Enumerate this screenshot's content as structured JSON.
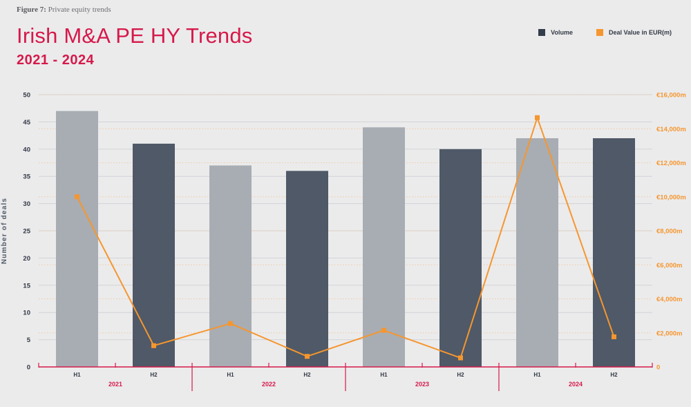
{
  "figure": {
    "label_bold": "Figure 7:",
    "label_text": "Private equity trends"
  },
  "legend": {
    "volume_label": "Volume",
    "value_label": "Deal Value in EUR(m)"
  },
  "colors": {
    "accent": "#d6194a",
    "bar_light": "#a8adb3",
    "bar_dark": "#4f5967",
    "line": "#f6962e",
    "right_axis": "#f6962e",
    "axis_line": "#d6194a"
  },
  "chart_data": {
    "type": "bar+line",
    "title": "Irish M&A PE HY Trends",
    "subtitle": "2021 - 2024",
    "ylabel": "Number of deals",
    "y2label": "",
    "categories": [
      "H1",
      "H2",
      "H1",
      "H2",
      "H1",
      "H2",
      "H1",
      "H2"
    ],
    "groups": [
      "2021",
      "2022",
      "2023",
      "2024"
    ],
    "ylim": [
      0,
      50
    ],
    "y_ticks": [
      0,
      5,
      10,
      15,
      20,
      25,
      30,
      35,
      40,
      45,
      50
    ],
    "y2lim": [
      0,
      16000
    ],
    "y2_ticks": [
      {
        "value": 0,
        "label": "0"
      },
      {
        "value": 2000,
        "label": "€2,000m"
      },
      {
        "value": 4000,
        "label": "€4,000m"
      },
      {
        "value": 6000,
        "label": "€6,000m"
      },
      {
        "value": 8000,
        "label": "€8,000m"
      },
      {
        "value": 10000,
        "label": "€10,000m"
      },
      {
        "value": 12000,
        "label": "€12,000m"
      },
      {
        "value": 14000,
        "label": "€14,000m"
      },
      {
        "value": 16000,
        "label": "€16,000m"
      }
    ],
    "series": [
      {
        "name": "Volume",
        "type": "bar",
        "values": [
          47,
          41,
          37,
          36,
          44,
          40,
          42,
          42
        ]
      },
      {
        "name": "Deal Value in EUR(m)",
        "type": "line",
        "axis": "right",
        "values": [
          10000,
          1250,
          2550,
          620,
          2150,
          530,
          14650,
          1770
        ]
      }
    ],
    "grid": true,
    "legend_position": "top-right"
  }
}
